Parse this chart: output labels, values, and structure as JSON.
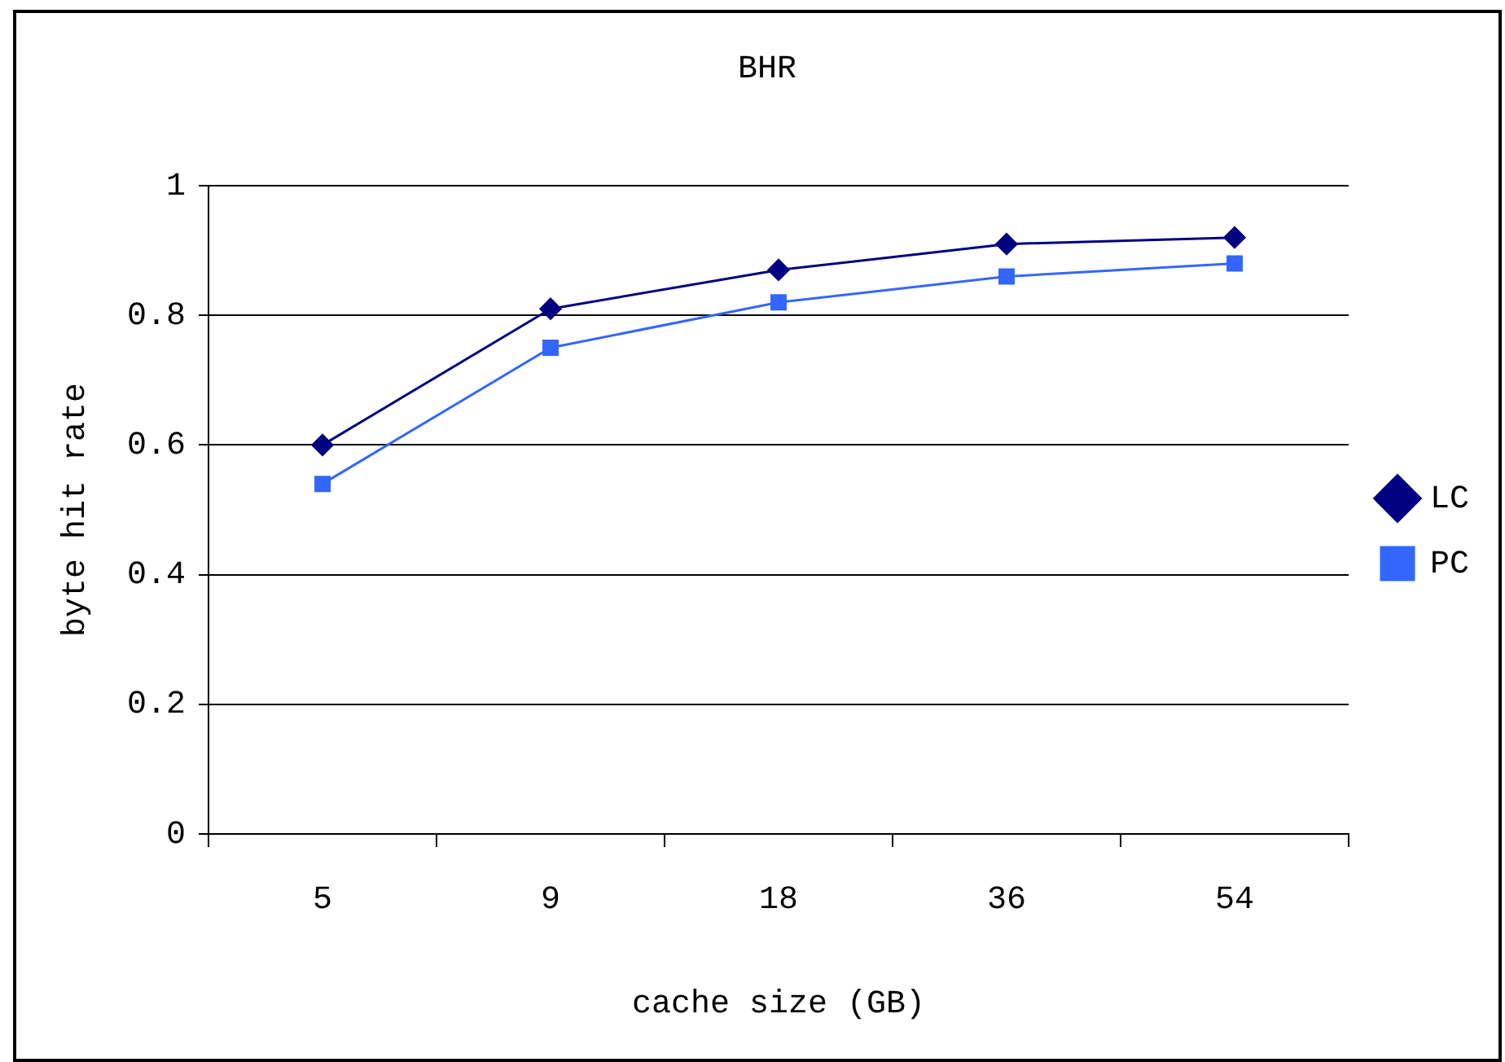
{
  "chart_data": {
    "type": "line",
    "title": "BHR",
    "xlabel": "cache size (GB)",
    "ylabel": "byte hit rate",
    "categories": [
      "5",
      "9",
      "18",
      "36",
      "54"
    ],
    "series": [
      {
        "name": "LC",
        "color": "#000080",
        "marker": "diamond",
        "values": [
          0.6,
          0.81,
          0.87,
          0.91,
          0.92
        ]
      },
      {
        "name": "PC",
        "color": "#3366ff",
        "marker": "square",
        "values": [
          0.54,
          0.75,
          0.82,
          0.86,
          0.88
        ]
      }
    ],
    "ylim": [
      0,
      1
    ],
    "yticks": [
      0,
      0.2,
      0.4,
      0.6,
      0.8,
      1
    ],
    "grid": "y",
    "legend": "right"
  }
}
